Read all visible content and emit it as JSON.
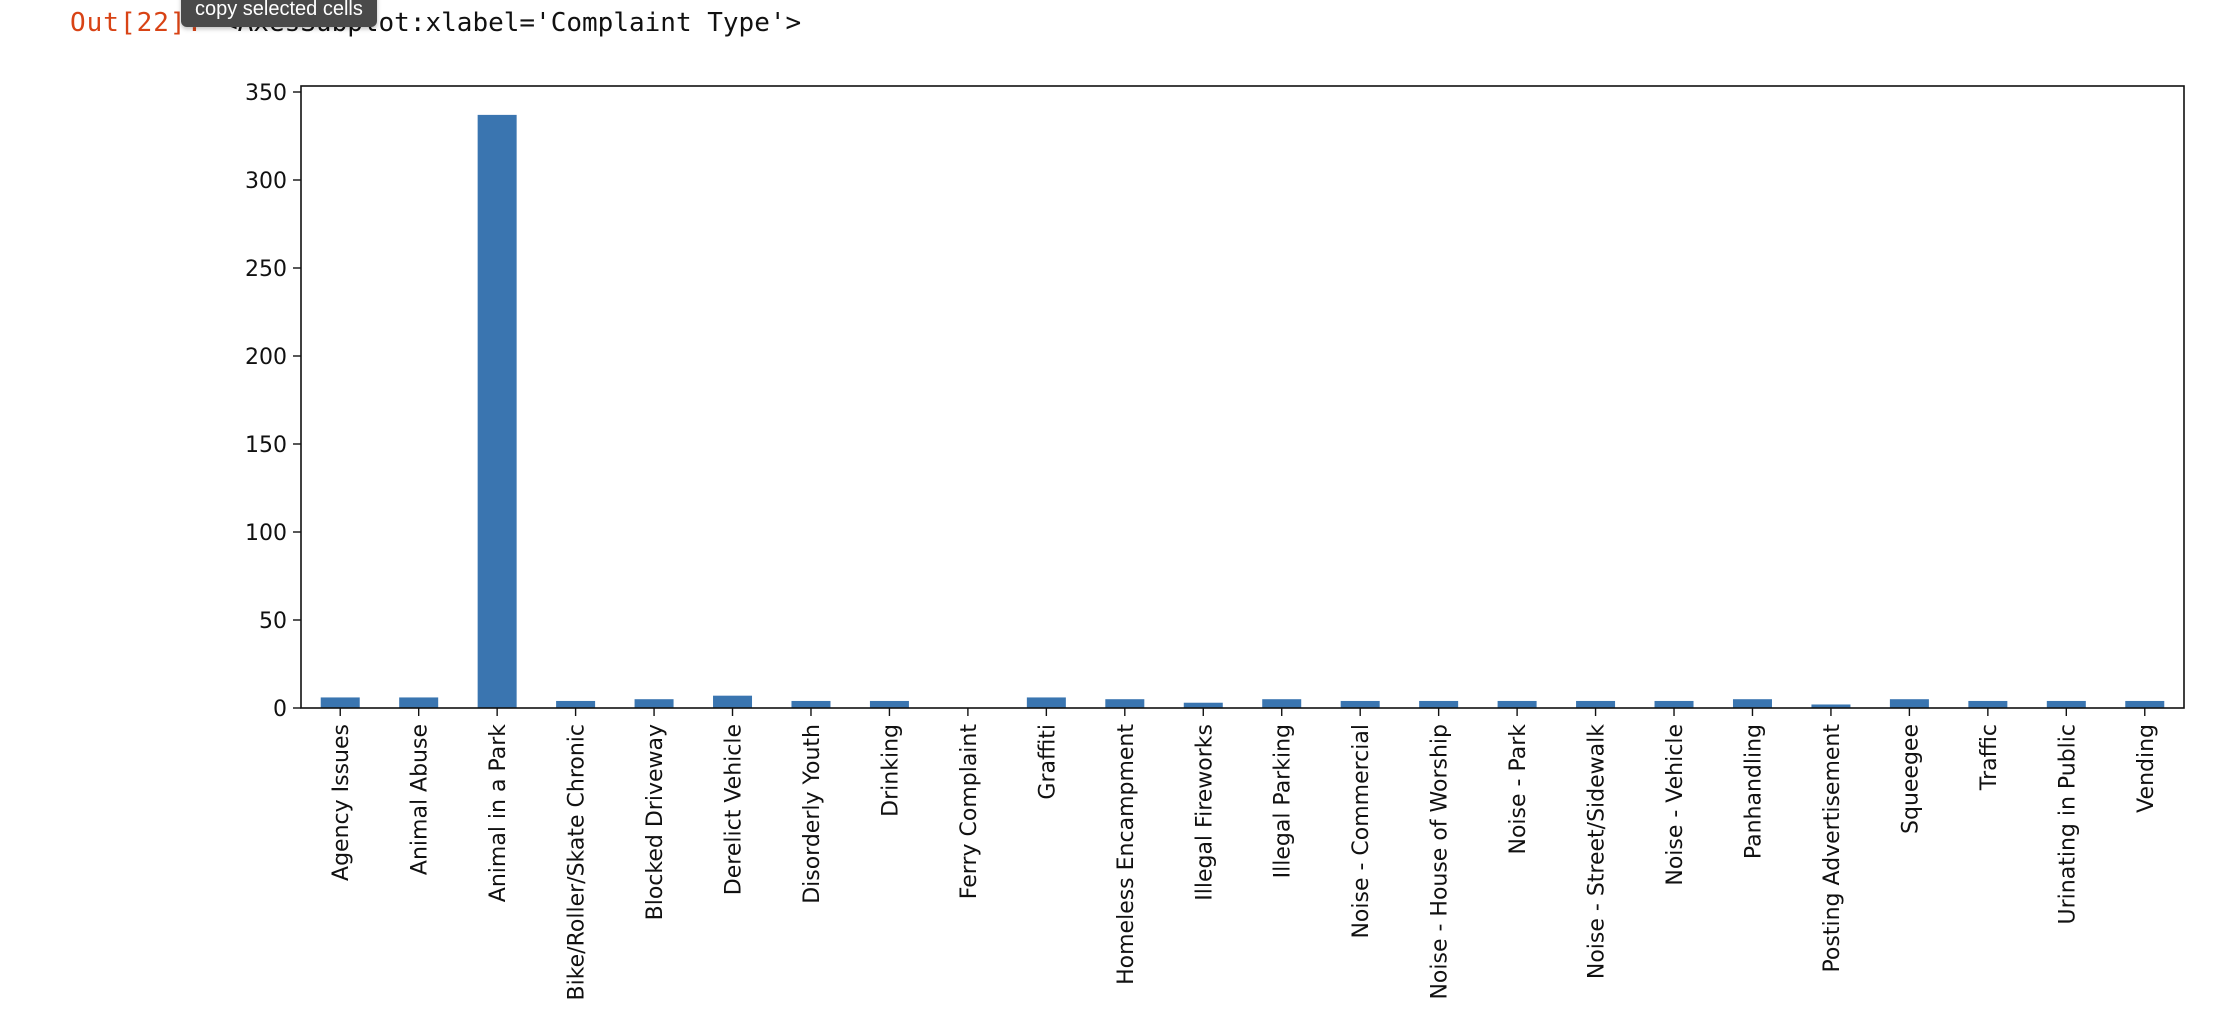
{
  "cell": {
    "out_prompt": "Out[22]:",
    "repr": "<AxesSubplot:xlabel='Complaint Type'>",
    "tooltip": "copy selected cells"
  },
  "chart_data": {
    "type": "bar",
    "title": "",
    "xlabel": "",
    "ylabel": "",
    "ylim": [
      0,
      350
    ],
    "yticks": [
      0,
      50,
      100,
      150,
      200,
      250,
      300,
      350
    ],
    "grid": false,
    "bar_color": "#3a75b0",
    "categories": [
      "Agency Issues",
      "Animal Abuse",
      "Animal in a Park",
      "Bike/Roller/Skate Chronic",
      "Blocked Driveway",
      "Derelict Vehicle",
      "Disorderly Youth",
      "Drinking",
      "Ferry Complaint",
      "Graffiti",
      "Homeless Encampment",
      "Illegal Fireworks",
      "Illegal Parking",
      "Noise - Commercial",
      "Noise - House of Worship",
      "Noise - Park",
      "Noise - Street/Sidewalk",
      "Noise - Vehicle",
      "Panhandling",
      "Posting Advertisement",
      "Squeegee",
      "Traffic",
      "Urinating in Public",
      "Vending"
    ],
    "values": [
      6,
      6,
      337,
      4,
      5,
      7,
      4,
      4,
      0,
      6,
      5,
      3,
      5,
      4,
      4,
      4,
      4,
      4,
      5,
      2,
      5,
      4,
      4,
      4
    ]
  }
}
